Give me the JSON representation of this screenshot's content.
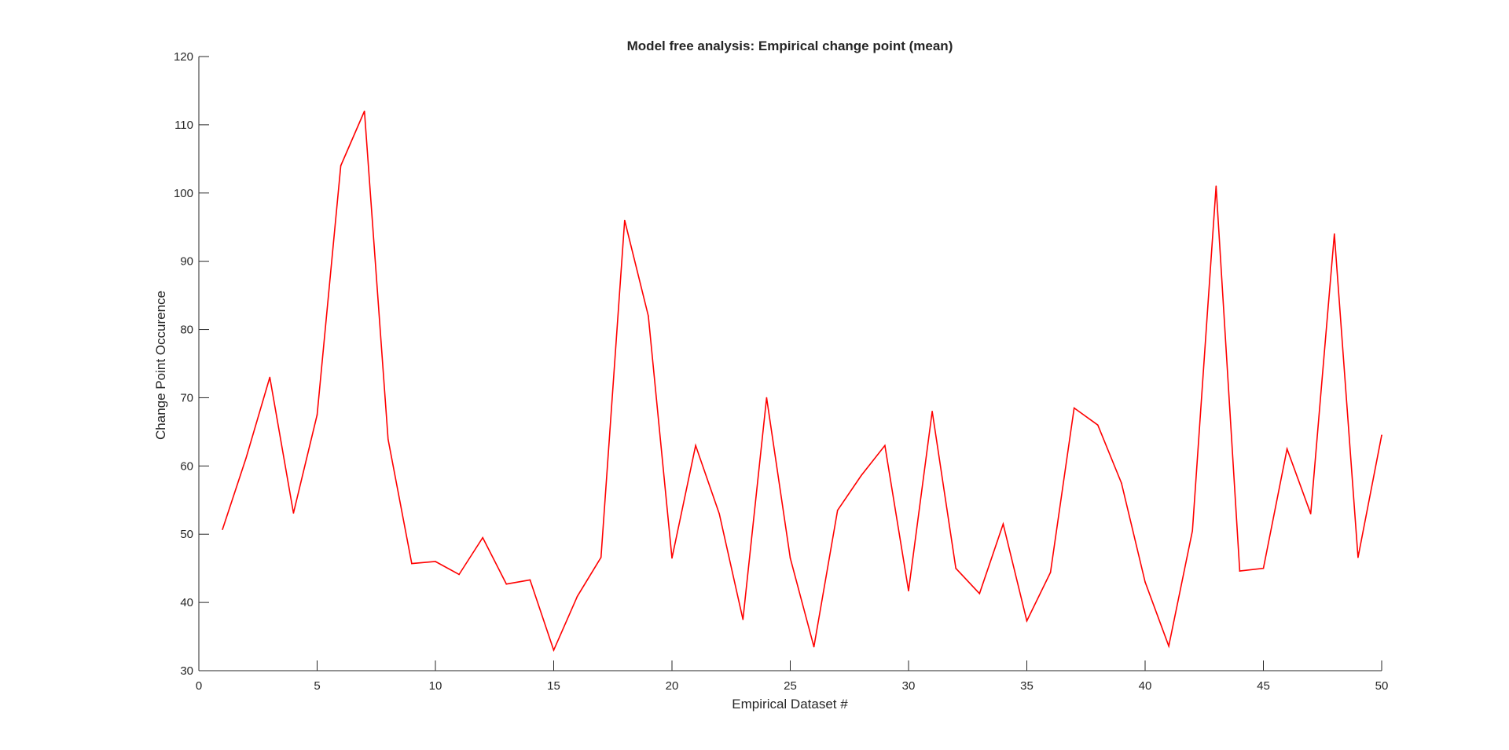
{
  "chart_data": {
    "type": "line",
    "title": "Model free analysis: Empirical change point (mean)",
    "xlabel": "Empirical Dataset #",
    "ylabel": "Change Point Occurence",
    "xlim": [
      0,
      50
    ],
    "ylim": [
      30,
      120
    ],
    "xticks": [
      0,
      5,
      10,
      15,
      20,
      25,
      30,
      35,
      40,
      45,
      50
    ],
    "yticks": [
      30,
      40,
      50,
      60,
      70,
      80,
      90,
      100,
      110,
      120
    ],
    "grid": false,
    "legend": "none",
    "series": [
      {
        "color": "#ff0000",
        "x": [
          1,
          2,
          3,
          4,
          5,
          6,
          7,
          8,
          9,
          10,
          11,
          12,
          13,
          14,
          15,
          16,
          17,
          18,
          19,
          20,
          21,
          22,
          23,
          24,
          25,
          26,
          27,
          28,
          29,
          30,
          31,
          32,
          33,
          34,
          35,
          36,
          37,
          38,
          39,
          40,
          41,
          42,
          43,
          44,
          45,
          46,
          47,
          48,
          49,
          50
        ],
        "values": [
          50.7,
          61.2,
          73.0,
          53.1,
          67.5,
          104.0,
          112.0,
          63.9,
          45.7,
          46.0,
          44.1,
          49.5,
          42.7,
          43.3,
          33.0,
          40.9,
          46.6,
          96.0,
          82.0,
          46.5,
          63.0,
          53.0,
          37.5,
          70.0,
          46.5,
          33.5,
          53.5,
          58.6,
          63.0,
          41.7,
          68.0,
          45.0,
          41.3,
          51.5,
          37.3,
          44.4,
          68.5,
          66.0,
          57.5,
          43.0,
          33.6,
          50.5,
          101.0,
          44.6,
          45.0,
          62.5,
          53.0,
          94.0,
          46.6,
          64.5
        ]
      }
    ]
  }
}
